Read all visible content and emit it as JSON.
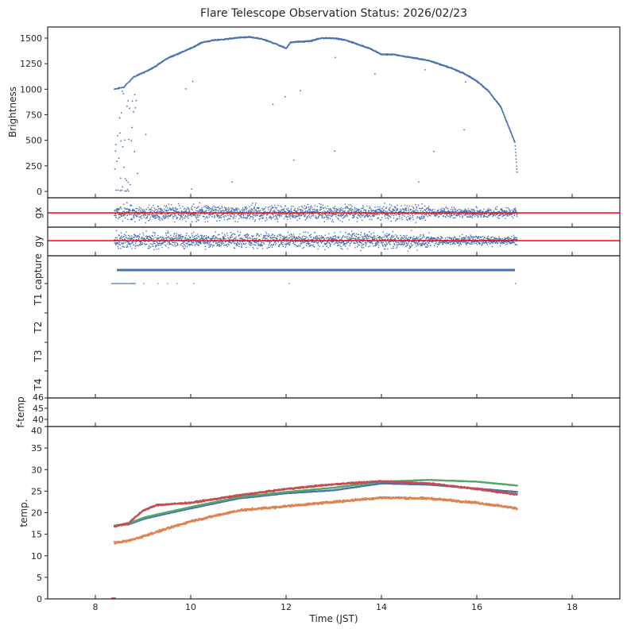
{
  "chart_data": {
    "type": "scatter",
    "title": "Flare Telescope Observation Status: 2026/02/23",
    "xlabel": "Time (JST)",
    "xlim": [
      7,
      19
    ],
    "xticks": [
      "8",
      "10",
      "12",
      "14",
      "16",
      "18"
    ],
    "panels": {
      "brightness": {
        "ylabel": "Brightness",
        "ylim": [
          -80,
          1580
        ],
        "yticks": [
          "0",
          "250",
          "500",
          "750",
          "1000",
          "1250",
          "1500"
        ],
        "color": "#4c72b0",
        "x": [
          8.4,
          8.6,
          8.8,
          9.0,
          9.25,
          9.5,
          9.75,
          10.0,
          10.25,
          10.5,
          10.75,
          11.0,
          11.25,
          11.5,
          11.75,
          12.0,
          12.1,
          12.5,
          12.75,
          13.0,
          13.25,
          13.5,
          13.75,
          14.0,
          14.25,
          14.5,
          14.75,
          15.0,
          15.25,
          15.5,
          15.75,
          16.0,
          16.25,
          16.5,
          16.8,
          16.85
        ],
        "values": [
          1000,
          1020,
          1120,
          1160,
          1220,
          1300,
          1350,
          1400,
          1460,
          1480,
          1490,
          1505,
          1510,
          1490,
          1450,
          1400,
          1460,
          1470,
          1500,
          1500,
          1480,
          1440,
          1400,
          1340,
          1340,
          1320,
          1300,
          1280,
          1240,
          1200,
          1150,
          1080,
          980,
          830,
          480,
          150
        ]
      },
      "gx": {
        "ylabel": "gx",
        "reference_line": 0,
        "reference_color": "#ff0000",
        "time_range": [
          8.4,
          16.85
        ],
        "color": "#4c72b0"
      },
      "gy": {
        "ylabel": "gy",
        "reference_line": 0,
        "reference_color": "#ff0000",
        "time_range": [
          8.4,
          16.85
        ],
        "color": "#4c72b0"
      },
      "status": {
        "categories": [
          "capture",
          "T1",
          "T2",
          "T3",
          "T4"
        ],
        "capture_range": [
          8.45,
          16.8
        ],
        "color": "#4c72b0"
      },
      "ftemp": {
        "ylabel": "f-temp",
        "yticks": [
          "46",
          "45",
          "40"
        ]
      },
      "temp": {
        "ylabel": "temp.",
        "ylim": [
          0,
          40
        ],
        "yticks": [
          "0",
          "5",
          "10",
          "15",
          "20",
          "25",
          "30",
          "35",
          "40"
        ],
        "x": [
          8.4,
          8.7,
          9.0,
          9.3,
          10.0,
          11.0,
          12.0,
          13.0,
          14.0,
          15.0,
          16.0,
          16.85
        ],
        "series": [
          {
            "name": "T1",
            "color": "#4c72b0",
            "values": [
              17.0,
              17.3,
              18.5,
              19.3,
              21.0,
              23.3,
              24.5,
              25.2,
              26.8,
              26.5,
              25.6,
              24.8
            ]
          },
          {
            "name": "T2",
            "color": "#dd8452",
            "values": [
              13.0,
              13.5,
              14.5,
              15.6,
              18.0,
              20.5,
              21.5,
              22.5,
              23.5,
              23.3,
              22.3,
              21.0
            ]
          },
          {
            "name": "T3",
            "color": "#55a868",
            "values": [
              17.0,
              17.5,
              18.8,
              19.6,
              21.3,
              23.6,
              24.8,
              25.8,
              27.2,
              27.6,
              27.2,
              26.3
            ]
          },
          {
            "name": "T4",
            "color": "#c44e52",
            "values": [
              16.8,
              17.6,
              20.5,
              21.8,
              22.3,
              24.0,
              25.5,
              26.6,
              27.3,
              26.8,
              25.5,
              24.2
            ]
          }
        ]
      }
    }
  }
}
